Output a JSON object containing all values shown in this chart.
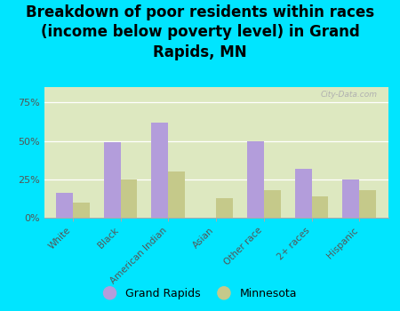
{
  "title": "Breakdown of poor residents within races\n(income below poverty level) in Grand\nRapids, MN",
  "categories": [
    "White",
    "Black",
    "American Indian",
    "Asian",
    "Other race",
    "2+ races",
    "Hispanic"
  ],
  "grand_rapids": [
    0.16,
    0.49,
    0.62,
    0.0,
    0.5,
    0.32,
    0.25
  ],
  "minnesota": [
    0.1,
    0.25,
    0.3,
    0.13,
    0.18,
    0.14,
    0.18
  ],
  "bar_color_gr": "#b39ddb",
  "bar_color_mn": "#c5c98a",
  "background_outer": "#00e5ff",
  "background_plot": "#dde8c0",
  "yticks": [
    0,
    0.25,
    0.5,
    0.75
  ],
  "ytick_labels": [
    "0%",
    "25%",
    "50%",
    "75%"
  ],
  "watermark": "City-Data.com",
  "legend_gr": "Grand Rapids",
  "legend_mn": "Minnesota",
  "title_fontsize": 12,
  "bar_width": 0.35,
  "ylim": [
    0,
    0.85
  ]
}
